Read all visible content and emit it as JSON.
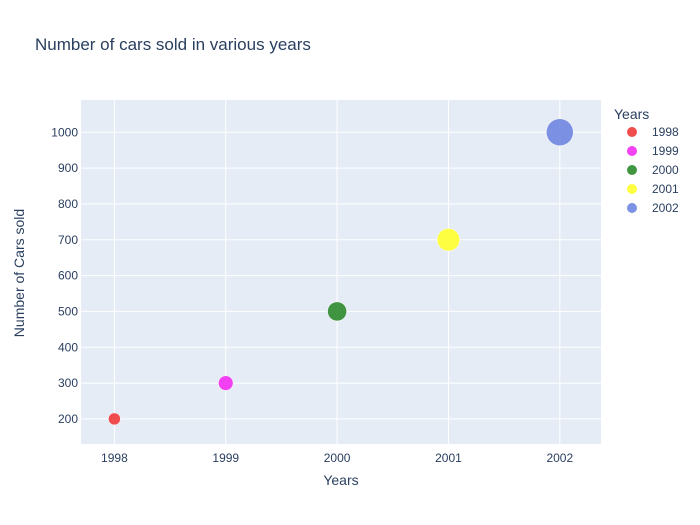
{
  "chart_data": {
    "type": "scatter",
    "title": "Number of cars sold in various years",
    "xlabel": "Years",
    "ylabel": "Number of Cars sold",
    "xlim": [
      1997.7,
      2002.37
    ],
    "ylim": [
      130,
      1090
    ],
    "x_ticks": [
      "1998",
      "1999",
      "2000",
      "2001",
      "2002"
    ],
    "y_ticks": [
      "200",
      "300",
      "400",
      "500",
      "600",
      "700",
      "800",
      "900",
      "1000"
    ],
    "grid": true,
    "legend_title": "Years",
    "legend_position": "top-right",
    "series": [
      {
        "name": "1998",
        "x": 1998,
        "y": 200,
        "size": 200,
        "color": "#ef3a3a"
      },
      {
        "name": "1999",
        "x": 1999,
        "y": 300,
        "size": 300,
        "color": "#f22ef2"
      },
      {
        "name": "2000",
        "x": 2000,
        "y": 500,
        "size": 500,
        "color": "#2e8b2e"
      },
      {
        "name": "2001",
        "x": 2001,
        "y": 700,
        "size": 700,
        "color": "#ffff2e"
      },
      {
        "name": "2002",
        "x": 2002,
        "y": 1000,
        "size": 1000,
        "color": "#6f86e0"
      }
    ],
    "plot_bg": "#e5ecf6",
    "grid_color": "#ffffff"
  }
}
